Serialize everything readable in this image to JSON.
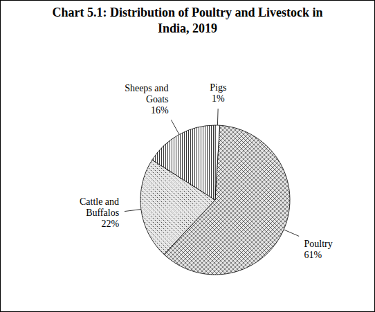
{
  "chart_data": {
    "type": "pie",
    "title": "Chart 5.1: Distribution of Poultry and Livestock in India, 2019",
    "categories": [
      "Pigs",
      "Poultry",
      "Cattle and Buffalos",
      "Sheeps and Goats"
    ],
    "values": [
      1,
      61,
      22,
      16
    ],
    "value_labels": [
      "1%",
      "61%",
      "22%",
      "16%"
    ],
    "colors": [
      "#ffffff",
      "#e4e4e4",
      "#eeeeee",
      "#ffffff"
    ],
    "data_labels": true
  }
}
